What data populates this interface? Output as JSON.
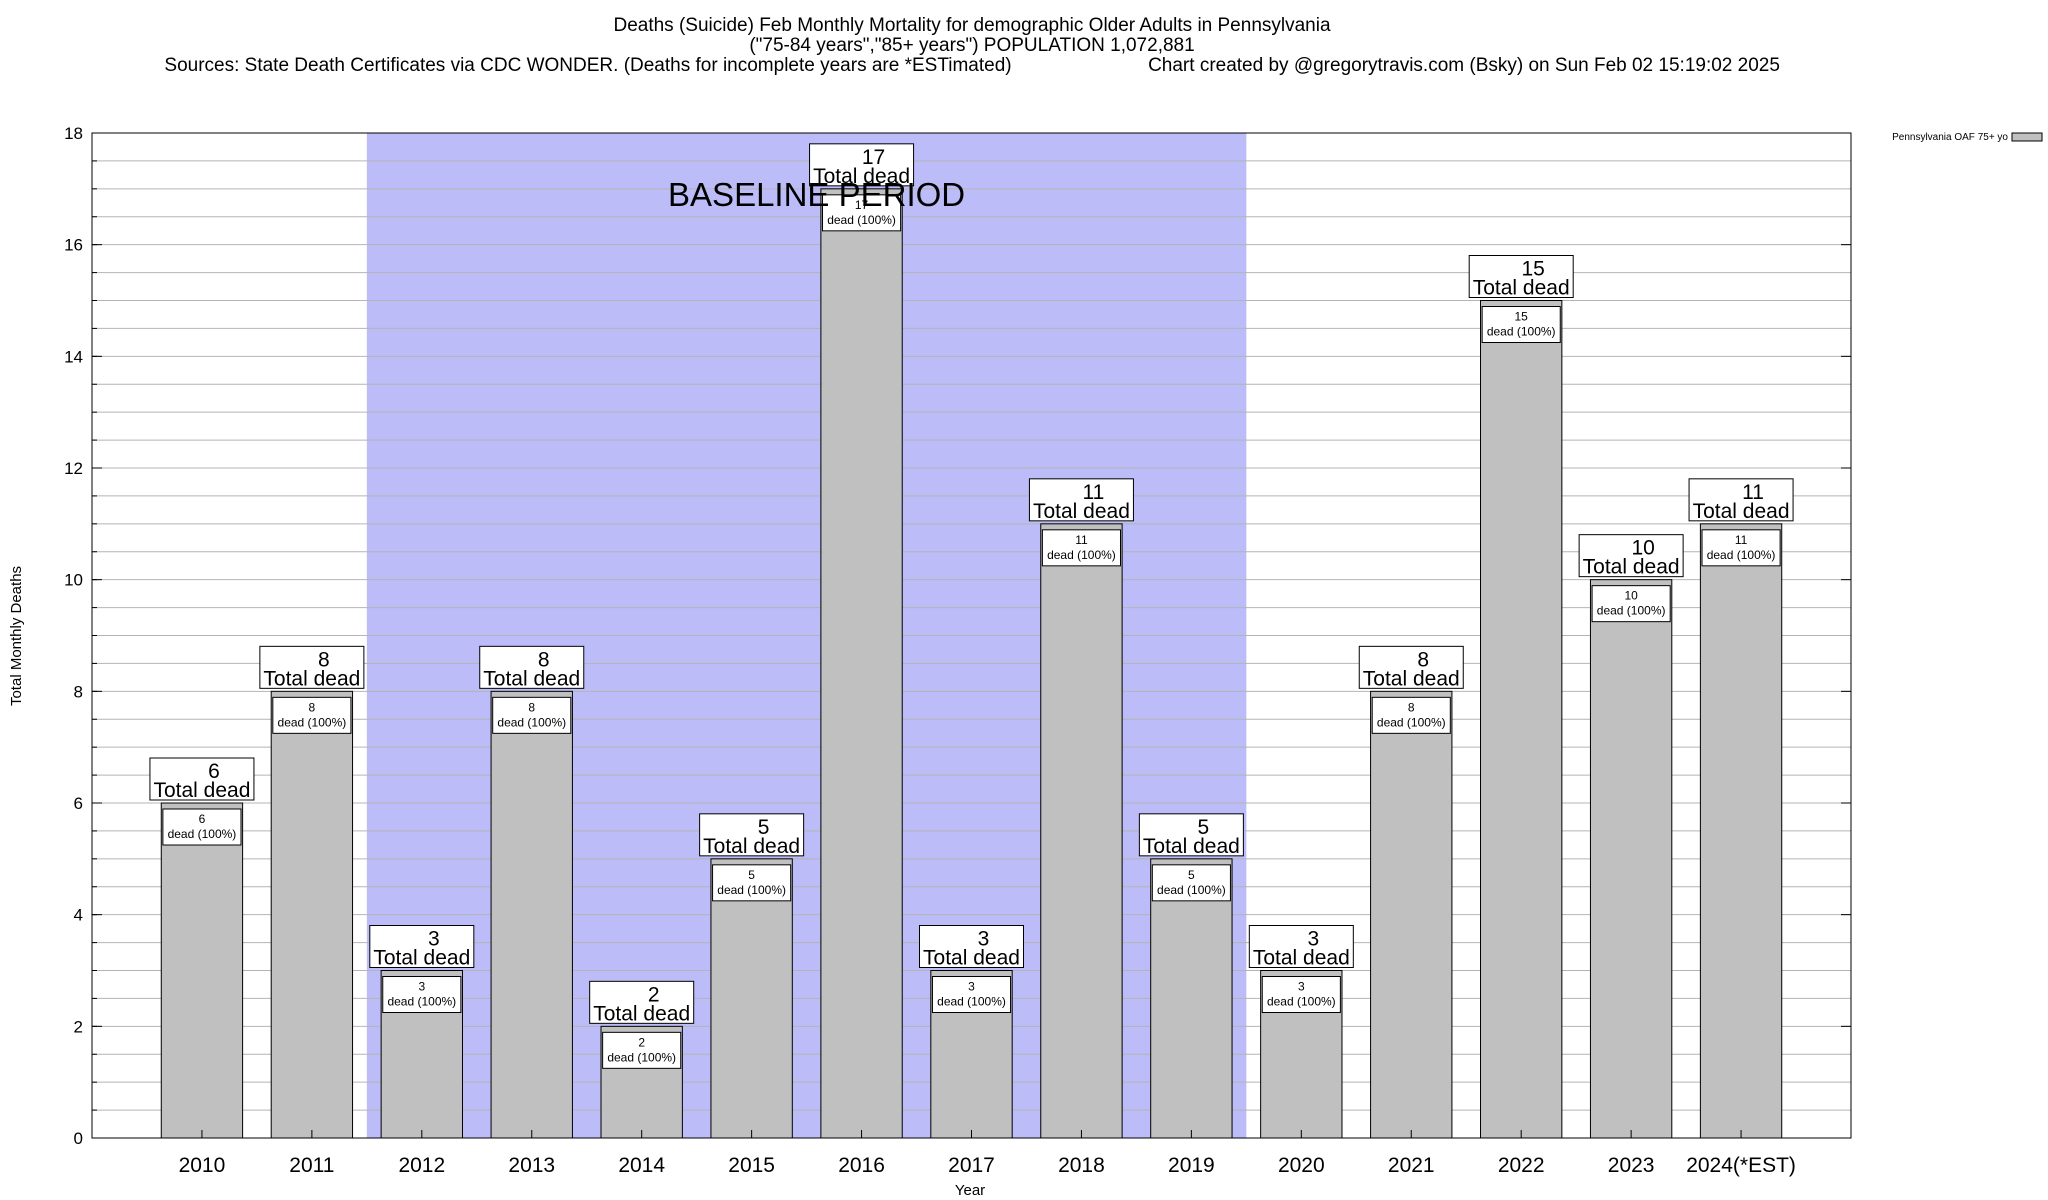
{
  "title_lines": [
    "Deaths (Suicide) Feb Monthly Mortality for demographic Older Adults in Pennsylvania",
    "(\"75-84 years\",\"85+ years\") POPULATION 1,072,881"
  ],
  "sources_text": "Sources: State Death Certificates via CDC WONDER. (Deaths for incomplete years are *ESTimated)",
  "credit_text": "Chart created by @gregorytravis.com (Bsky) on Sun Feb 02 15:19:02 2025",
  "total_dead_text": "Total dead",
  "colors": {
    "bar_fill": "#c0c0c0",
    "baseline_fill": "#bcbcf8",
    "grid": "#b4b4b4"
  },
  "chart_data": {
    "type": "bar",
    "title": "Deaths (Suicide) Feb Monthly Mortality for demographic Older Adults in Pennsylvania",
    "subtitle": "(\"75-84 years\",\"85+ years\") POPULATION 1,072,881",
    "xlabel": "Year",
    "ylabel": "Total Monthly Deaths",
    "ylim": [
      0,
      18
    ],
    "yticks": [
      0,
      2,
      4,
      6,
      8,
      10,
      12,
      14,
      16,
      18
    ],
    "grid": true,
    "legend_position": "top-right",
    "categories": [
      "2010",
      "2011",
      "2012",
      "2013",
      "2014",
      "2015",
      "2016",
      "2017",
      "2018",
      "2019",
      "2020",
      "2021",
      "2022",
      "2023",
      "2024(*EST)"
    ],
    "series": [
      {
        "name": "Pennsylvania OAF 75+ yo",
        "values": [
          6,
          8,
          3,
          8,
          2,
          5,
          17,
          3,
          11,
          5,
          3,
          8,
          15,
          10,
          11
        ],
        "inner_labels": [
          "dead (100%)",
          "dead (100%)",
          "dead (100%)",
          "dead (100%)",
          "dead (100%)",
          "dead (100%)",
          "dead (100%)",
          "dead (100%)",
          "dead (100%)",
          "dead (100%)",
          "dead (100%)",
          "dead (100%)",
          "dead (100%)",
          "dead (100%)",
          "dead (100%)"
        ]
      }
    ],
    "annotations": [
      {
        "text": "BASELINE PERIOD",
        "from_category": "2012",
        "to_category": "2019"
      }
    ]
  }
}
